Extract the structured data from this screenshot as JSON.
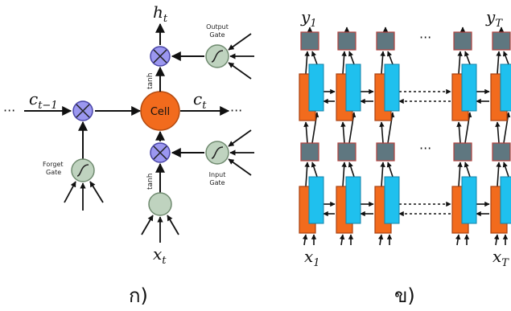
{
  "panel_a": {
    "caption": "ก)",
    "cell_label": "Cell",
    "h_label": "h",
    "h_sub": "t",
    "c_prev_label": "c",
    "c_prev_sub": "t−1",
    "c_next_label": "c",
    "c_next_sub": "t",
    "x_label": "x",
    "x_sub": "t",
    "ellipsis_left": "···",
    "ellipsis_right": "···",
    "tanh_top": "tanh",
    "tanh_bottom": "tanh",
    "output_gate": [
      "Output",
      "Gate"
    ],
    "forget_gate": [
      "Forget",
      "Gate"
    ],
    "input_gate": [
      "Input",
      "Gate"
    ],
    "colors": {
      "cell": "#f26b1d",
      "multiply": "#9b97f0",
      "gate": "#bfd3bf",
      "line": "#111111"
    }
  },
  "panel_b": {
    "caption": "ข)",
    "y1_label": "y",
    "y1_sub": "1",
    "yT_label": "y",
    "yT_sub": "T",
    "x1_label": "x",
    "x1_sub": "1",
    "xT_label": "x",
    "xT_sub": "T",
    "dots_top": "···",
    "dots_mid": "···",
    "colors": {
      "forward": "#f26b1d",
      "backward": "#1fc0ee",
      "output": "#5f7780",
      "line": "#111111"
    }
  }
}
